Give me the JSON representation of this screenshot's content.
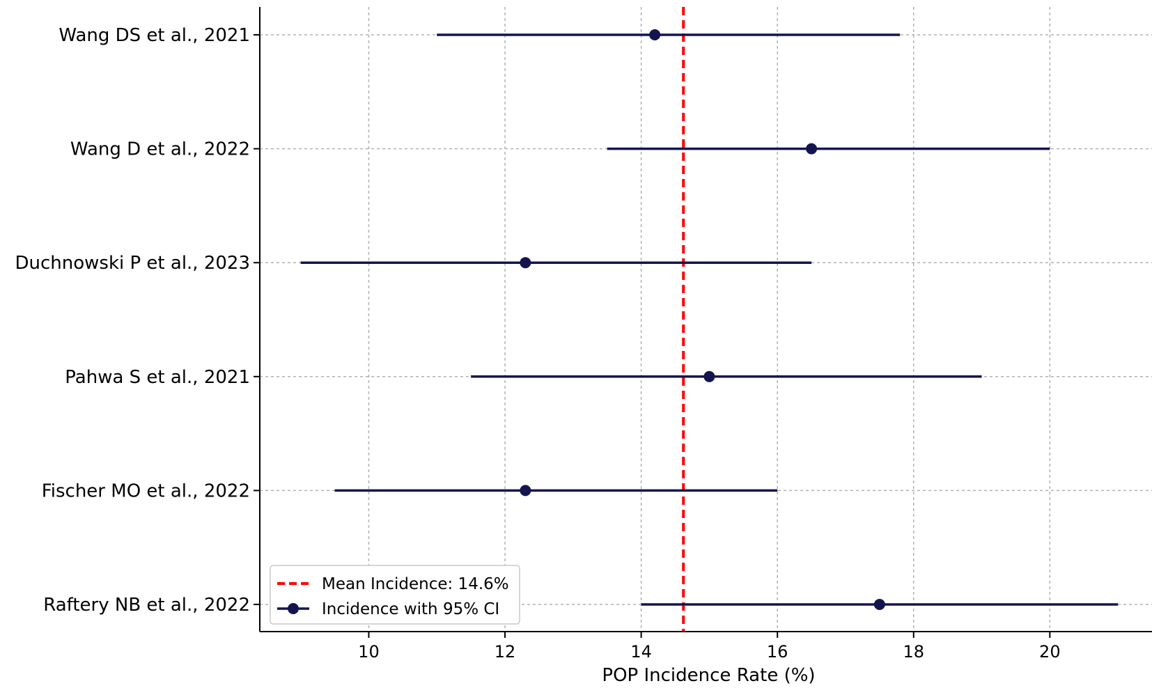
{
  "chart_data": {
    "type": "forest",
    "title": "",
    "xlabel": "POP Incidence Rate (%)",
    "ylabel": "",
    "xlim": [
      8.4,
      21.5
    ],
    "xticks": [
      10,
      12,
      14,
      16,
      18,
      20
    ],
    "grid": true,
    "legend_position": "bottom-left",
    "colors": {
      "estimate": "#14154f",
      "mean_line": "#ff0000"
    },
    "studies": [
      {
        "label": "Wang DS et al., 2021",
        "estimate": 14.2,
        "ci_low": 11.0,
        "ci_high": 17.8
      },
      {
        "label": "Wang D et al., 2022",
        "estimate": 16.5,
        "ci_low": 13.5,
        "ci_high": 20.0
      },
      {
        "label": "Duchnowski P et al., 2023",
        "estimate": 12.3,
        "ci_low": 9.0,
        "ci_high": 16.5
      },
      {
        "label": "Pahwa S et al., 2021",
        "estimate": 15.0,
        "ci_low": 11.5,
        "ci_high": 19.0
      },
      {
        "label": "Fischer MO et al., 2022",
        "estimate": 12.3,
        "ci_low": 9.5,
        "ci_high": 16.0
      },
      {
        "label": "Raftery NB et al., 2022",
        "estimate": 17.5,
        "ci_low": 14.0,
        "ci_high": 21.0
      }
    ],
    "mean": {
      "value": 14.62,
      "legend_label": "Mean Incidence: 14.6%"
    },
    "series_legend_label": "Incidence with 95% CI"
  }
}
